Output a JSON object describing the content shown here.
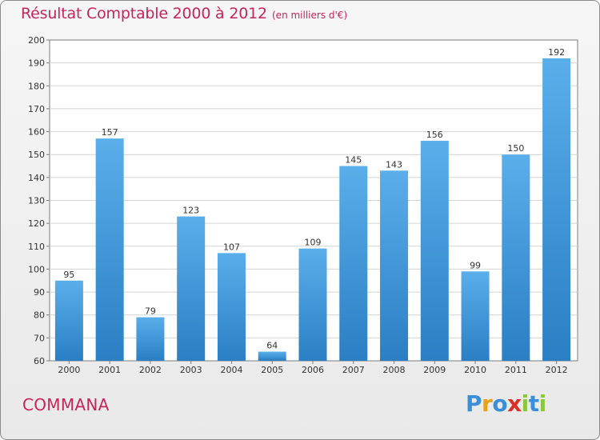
{
  "header": {
    "title": "Résultat Comptable 2000 à 2012",
    "subtitle": "(en milliers d'€)"
  },
  "commune": "COMMANA",
  "brand": {
    "letters": [
      {
        "char": "P",
        "color": "#3a8fd8"
      },
      {
        "char": "r",
        "color": "#e8a21a"
      },
      {
        "char": "o",
        "color": "#3a8fd8"
      },
      {
        "char": "x",
        "color": "#d8322a"
      },
      {
        "char": "i",
        "color": "#8cc63f"
      },
      {
        "char": "t",
        "color": "#3a8fd8"
      },
      {
        "char": "i",
        "color": "#8cc63f"
      }
    ]
  },
  "colors": {
    "title": "#c8245a",
    "bar_top": "#5aaeea",
    "bar_bottom": "#2a7fc4"
  },
  "chart_data": {
    "type": "bar",
    "categories": [
      "2000",
      "2001",
      "2002",
      "2003",
      "2004",
      "2005",
      "2006",
      "2007",
      "2008",
      "2009",
      "2010",
      "2011",
      "2012"
    ],
    "values": [
      95,
      157,
      79,
      123,
      107,
      64,
      109,
      145,
      143,
      156,
      99,
      150,
      192
    ],
    "ylim": [
      60,
      200
    ],
    "yticks": [
      60,
      70,
      80,
      90,
      100,
      110,
      120,
      130,
      140,
      150,
      160,
      170,
      180,
      190,
      200
    ],
    "grid": true
  }
}
